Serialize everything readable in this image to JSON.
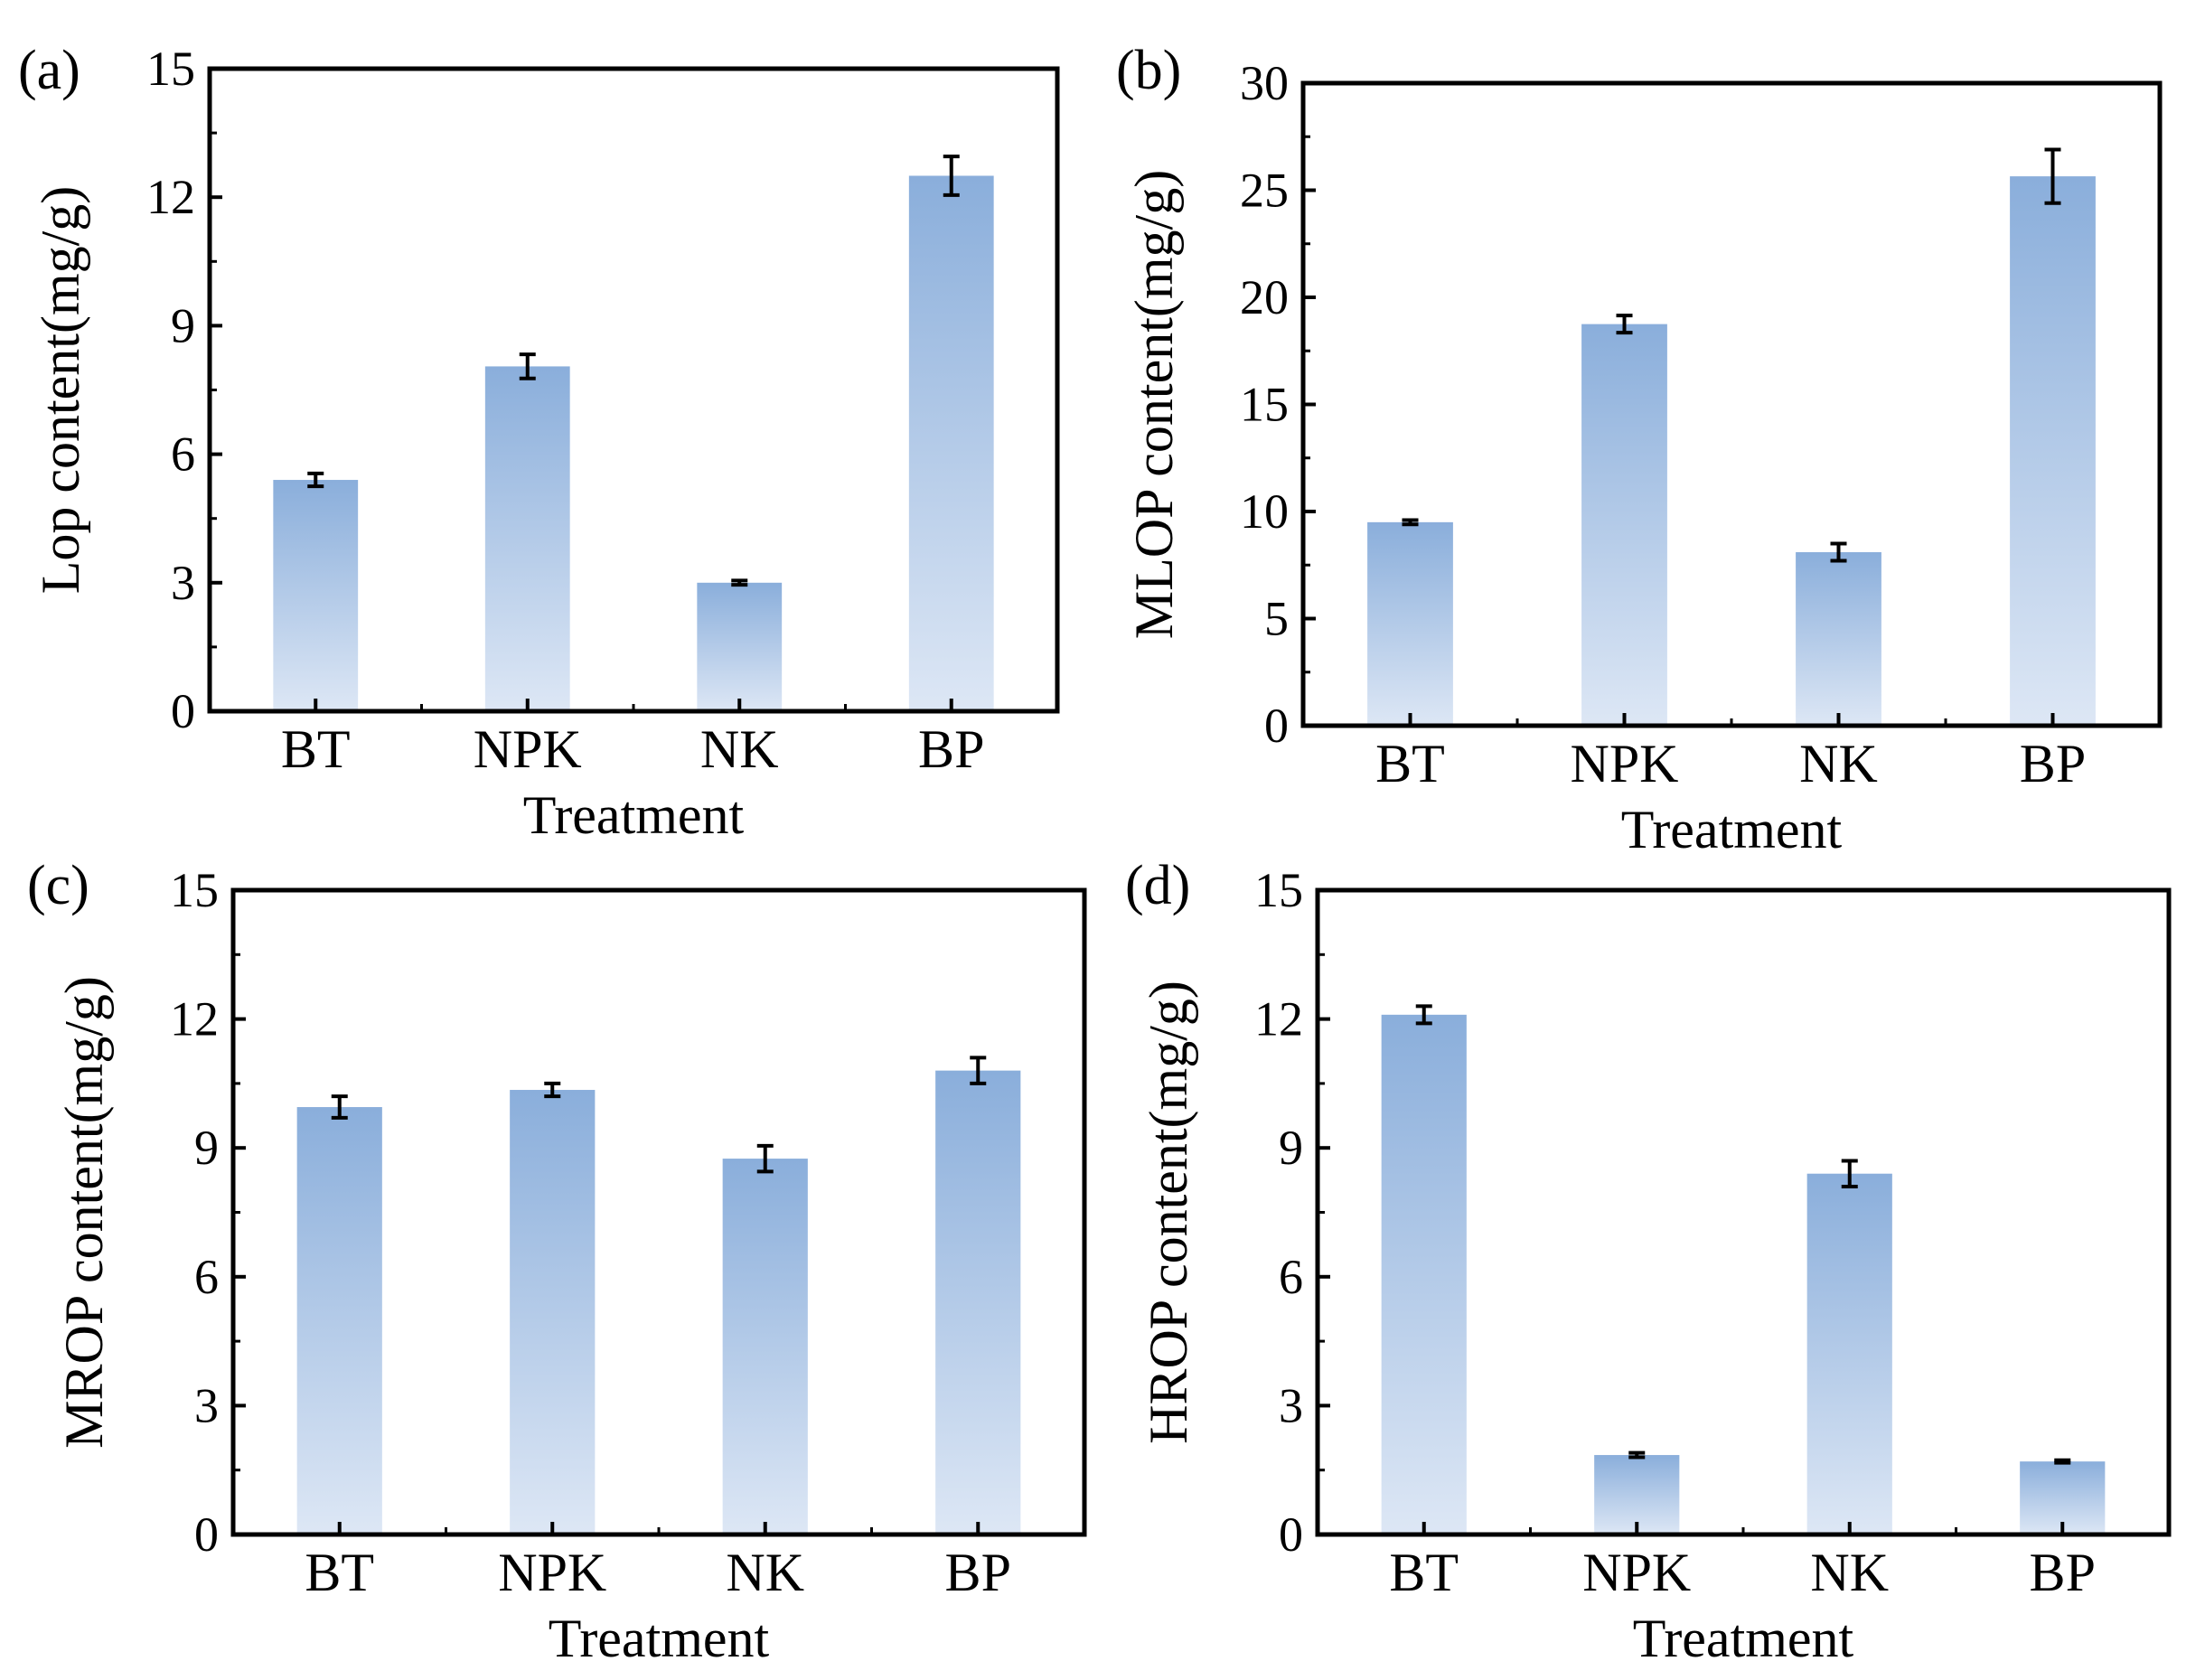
{
  "chart_data": [
    {
      "panel_label": "(a)",
      "type": "bar",
      "categories": [
        "BT",
        "NPK",
        "NK",
        "BP"
      ],
      "values": [
        5.4,
        8.05,
        3.0,
        12.5
      ],
      "errors": [
        0.15,
        0.28,
        0.05,
        0.45
      ],
      "xlabel": "Treatment",
      "ylabel": "Lop content(mg/g)",
      "ylim": [
        0,
        15
      ],
      "yticks": [
        "0",
        "3",
        "6",
        "9",
        "12",
        "15"
      ],
      "ytick_values": [
        0,
        3,
        6,
        9,
        12,
        15
      ]
    },
    {
      "panel_label": "(b)",
      "type": "bar",
      "categories": [
        "BT",
        "NPK",
        "NK",
        "BP"
      ],
      "values": [
        9.5,
        18.75,
        8.1,
        25.65
      ],
      "errors": [
        0.1,
        0.4,
        0.4,
        1.25
      ],
      "xlabel": "Treatment",
      "ylabel": "MLOP content(mg/g)",
      "ylim": [
        0,
        30
      ],
      "yticks": [
        "0",
        "5",
        "10",
        "15",
        "20",
        "25",
        "30"
      ],
      "ytick_values": [
        0,
        5,
        10,
        15,
        20,
        25,
        30
      ]
    },
    {
      "panel_label": "(c)",
      "type": "bar",
      "categories": [
        "BT",
        "NPK",
        "NK",
        "BP"
      ],
      "values": [
        9.95,
        10.35,
        8.75,
        10.8
      ],
      "errors": [
        0.25,
        0.15,
        0.3,
        0.3
      ],
      "xlabel": "Treatment",
      "ylabel": "MROP content(mg/g)",
      "ylim": [
        0,
        15
      ],
      "yticks": [
        "0",
        "3",
        "6",
        "9",
        "12",
        "15"
      ],
      "ytick_values": [
        0,
        3,
        6,
        9,
        12,
        15
      ]
    },
    {
      "panel_label": "(d)",
      "type": "bar",
      "categories": [
        "BT",
        "NPK",
        "NK",
        "BP"
      ],
      "values": [
        12.1,
        1.85,
        8.4,
        1.7
      ],
      "errors": [
        0.2,
        0.05,
        0.3,
        0.03
      ],
      "xlabel": "Treatment",
      "ylabel": "HROP content(mg/g)",
      "ylim": [
        0,
        15
      ],
      "yticks": [
        "0",
        "3",
        "6",
        "9",
        "12",
        "15"
      ],
      "ytick_values": [
        0,
        3,
        6,
        9,
        12,
        15
      ]
    }
  ],
  "colors": {
    "bar_top": "#8aaedb",
    "bar_bottom": "#dde7f5",
    "axis": "#000000"
  }
}
